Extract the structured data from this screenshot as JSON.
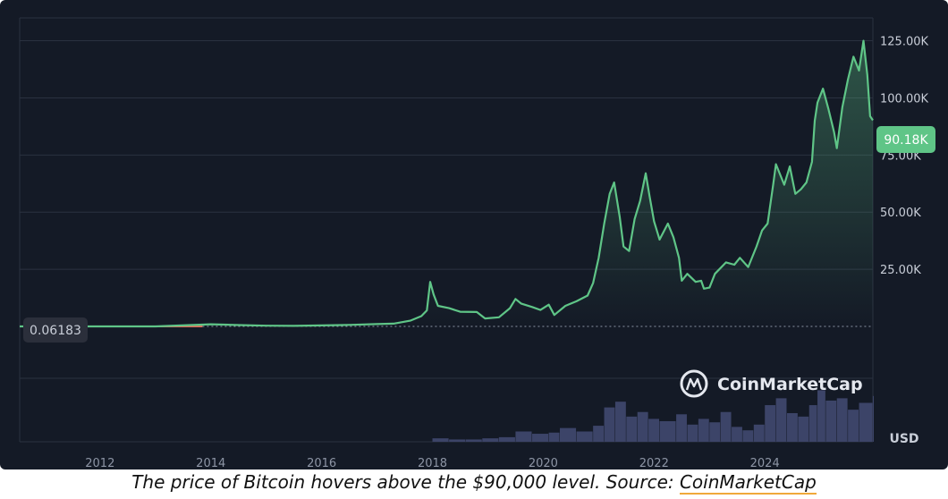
{
  "caption": {
    "text": "The price of Bitcoin hovers above the $90,000 level. Source: ",
    "link": "CoinMarketCap"
  },
  "watermark": {
    "text": "CoinMarketCap",
    "icon": "coinmarketcap-logo-icon"
  },
  "colors": {
    "background": "#141a26",
    "line": "#5fc587",
    "badge": "#5fc587",
    "volume": "#3c4468",
    "grid": "#2a3140",
    "baseline": "#e06b5a"
  },
  "chart_data": {
    "type": "area",
    "currency_label": "USD",
    "start_price_label": "0.06183",
    "current_price_label": "90.18K",
    "current_price": 90180,
    "ylim": [
      0,
      135000
    ],
    "xlim": [
      2010.55,
      2025.95
    ],
    "y_ticks": [
      {
        "value": 25000,
        "label": "25.00K"
      },
      {
        "value": 50000,
        "label": "50.00K"
      },
      {
        "value": 75000,
        "label": "75.00K"
      },
      {
        "value": 100000,
        "label": "100.00K"
      },
      {
        "value": 125000,
        "label": "125.00K"
      }
    ],
    "x_ticks": [
      {
        "value": 2012,
        "label": "2012"
      },
      {
        "value": 2014,
        "label": "2014"
      },
      {
        "value": 2016,
        "label": "2016"
      },
      {
        "value": 2018,
        "label": "2018"
      },
      {
        "value": 2020,
        "label": "2020"
      },
      {
        "value": 2022,
        "label": "2022"
      },
      {
        "value": 2024,
        "label": "2024"
      }
    ],
    "series": [
      {
        "points": [
          [
            2010.55,
            0.06
          ],
          [
            2013.0,
            13
          ],
          [
            2013.85,
            800
          ],
          [
            2014.0,
            950
          ],
          [
            2014.5,
            600
          ],
          [
            2015.0,
            300
          ],
          [
            2015.5,
            250
          ],
          [
            2016.0,
            430
          ],
          [
            2016.5,
            650
          ],
          [
            2017.0,
            1000
          ],
          [
            2017.3,
            1200
          ],
          [
            2017.6,
            2500
          ],
          [
            2017.8,
            4500
          ],
          [
            2017.9,
            7000
          ],
          [
            2017.96,
            19500
          ],
          [
            2018.02,
            14000
          ],
          [
            2018.1,
            9000
          ],
          [
            2018.3,
            8000
          ],
          [
            2018.5,
            6400
          ],
          [
            2018.8,
            6300
          ],
          [
            2018.95,
            3500
          ],
          [
            2019.2,
            4000
          ],
          [
            2019.4,
            8000
          ],
          [
            2019.5,
            12000
          ],
          [
            2019.6,
            10000
          ],
          [
            2019.8,
            8500
          ],
          [
            2019.95,
            7200
          ],
          [
            2020.1,
            9500
          ],
          [
            2020.2,
            5000
          ],
          [
            2020.4,
            9000
          ],
          [
            2020.6,
            11000
          ],
          [
            2020.8,
            13500
          ],
          [
            2020.9,
            19000
          ],
          [
            2021.0,
            30000
          ],
          [
            2021.1,
            45000
          ],
          [
            2021.2,
            58000
          ],
          [
            2021.28,
            63000
          ],
          [
            2021.38,
            48000
          ],
          [
            2021.45,
            35000
          ],
          [
            2021.55,
            33000
          ],
          [
            2021.65,
            47000
          ],
          [
            2021.75,
            55000
          ],
          [
            2021.85,
            67000
          ],
          [
            2021.92,
            57000
          ],
          [
            2022.0,
            46000
          ],
          [
            2022.1,
            38000
          ],
          [
            2022.25,
            45000
          ],
          [
            2022.35,
            39000
          ],
          [
            2022.45,
            30000
          ],
          [
            2022.5,
            20000
          ],
          [
            2022.6,
            23000
          ],
          [
            2022.75,
            19500
          ],
          [
            2022.85,
            20000
          ],
          [
            2022.9,
            16500
          ],
          [
            2023.0,
            17000
          ],
          [
            2023.1,
            23000
          ],
          [
            2023.3,
            28000
          ],
          [
            2023.45,
            27000
          ],
          [
            2023.55,
            30000
          ],
          [
            2023.7,
            26000
          ],
          [
            2023.85,
            35000
          ],
          [
            2023.95,
            42000
          ],
          [
            2024.05,
            45000
          ],
          [
            2024.15,
            62000
          ],
          [
            2024.2,
            71000
          ],
          [
            2024.35,
            62000
          ],
          [
            2024.45,
            70000
          ],
          [
            2024.55,
            58000
          ],
          [
            2024.65,
            60000
          ],
          [
            2024.75,
            63000
          ],
          [
            2024.85,
            72000
          ],
          [
            2024.9,
            90000
          ],
          [
            2024.95,
            98000
          ],
          [
            2025.05,
            104000
          ],
          [
            2025.15,
            95000
          ],
          [
            2025.25,
            85000
          ],
          [
            2025.3,
            78000
          ],
          [
            2025.4,
            96000
          ],
          [
            2025.5,
            108000
          ],
          [
            2025.6,
            118000
          ],
          [
            2025.7,
            112000
          ],
          [
            2025.78,
            125000
          ],
          [
            2025.85,
            110000
          ],
          [
            2025.9,
            92000
          ],
          [
            2025.95,
            90180
          ]
        ]
      }
    ],
    "volume": [
      [
        2018.0,
        3
      ],
      [
        2018.3,
        2
      ],
      [
        2018.6,
        2
      ],
      [
        2018.9,
        3
      ],
      [
        2019.2,
        4
      ],
      [
        2019.5,
        9
      ],
      [
        2019.8,
        7
      ],
      [
        2020.1,
        8
      ],
      [
        2020.3,
        12
      ],
      [
        2020.6,
        9
      ],
      [
        2020.9,
        14
      ],
      [
        2021.1,
        30
      ],
      [
        2021.3,
        35
      ],
      [
        2021.5,
        22
      ],
      [
        2021.7,
        26
      ],
      [
        2021.9,
        20
      ],
      [
        2022.1,
        18
      ],
      [
        2022.4,
        24
      ],
      [
        2022.6,
        15
      ],
      [
        2022.8,
        20
      ],
      [
        2023.0,
        17
      ],
      [
        2023.2,
        26
      ],
      [
        2023.4,
        13
      ],
      [
        2023.6,
        10
      ],
      [
        2023.8,
        15
      ],
      [
        2024.0,
        32
      ],
      [
        2024.2,
        38
      ],
      [
        2024.4,
        25
      ],
      [
        2024.6,
        22
      ],
      [
        2024.8,
        32
      ],
      [
        2024.95,
        45
      ],
      [
        2025.1,
        36
      ],
      [
        2025.3,
        38
      ],
      [
        2025.5,
        28
      ],
      [
        2025.7,
        34
      ],
      [
        2025.95,
        40
      ]
    ],
    "volume_max": 50
  }
}
